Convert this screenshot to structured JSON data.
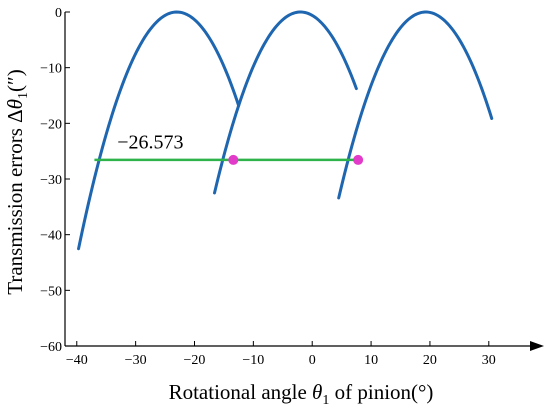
{
  "chart_data": {
    "type": "line",
    "xlabel": {
      "pre": "Rotational angle ",
      "symbol": "θ",
      "sub": "1",
      "post": " of pinion(°)"
    },
    "ylabel": {
      "pre": "Transmission errors Δ",
      "symbol": "θ",
      "sub": "1",
      "post": "(″)"
    },
    "xlim": [
      -42,
      37
    ],
    "ylim": [
      -60,
      0
    ],
    "xticks": [
      -40,
      -30,
      -20,
      -10,
      0,
      10,
      20,
      30
    ],
    "yticks": [
      0,
      -10,
      -20,
      -30,
      -40,
      -50,
      -60
    ],
    "xtick_labels": [
      "−40",
      "−30",
      "−20",
      "−10",
      "0",
      "10",
      "20",
      "30"
    ],
    "ytick_labels": [
      "0",
      "−10",
      "−20",
      "−30",
      "−40",
      "−50",
      "−60"
    ],
    "series": [
      {
        "peak_x": -23.0,
        "x_range": [
          -39.7,
          -12.5
        ]
      },
      {
        "peak_x": -2.0,
        "x_range": [
          -16.6,
          7.5
        ]
      },
      {
        "peak_x": 19.3,
        "x_range": [
          4.5,
          30.5
        ]
      }
    ],
    "peak_y": 0,
    "curvature": 0.1525,
    "series_color": "#1f66b0",
    "transfer_line": {
      "y": -26.573,
      "x_range": [
        -37,
        7.8
      ],
      "color": "#2db34a"
    },
    "intersection_points": [
      {
        "x": -13.4,
        "y": -26.573
      },
      {
        "x": 7.8,
        "y": -26.573
      }
    ],
    "point_color": "#e23bc9",
    "annotation": {
      "text": "−26.573",
      "x": -27.5,
      "y": -24.5
    },
    "grid": false
  }
}
